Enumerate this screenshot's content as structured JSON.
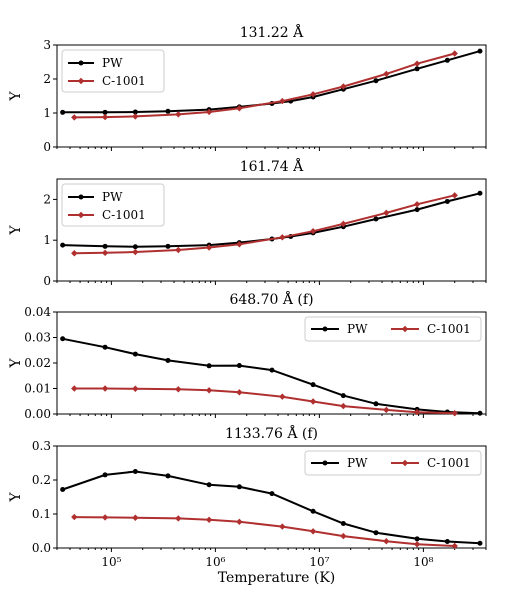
{
  "chart_data": [
    {
      "type": "line",
      "title": "131.22 Å",
      "xlabel": "",
      "ylabel": "Y",
      "xscale": "log",
      "xlim": [
        30000,
        400000000
      ],
      "ylim": [
        0,
        3
      ],
      "yticks": [
        "0",
        "1",
        "2",
        "3"
      ],
      "legend": "top-left",
      "series": [
        {
          "name": "PW",
          "color": "#000000",
          "marker": "circle",
          "x": [
            34000,
            87000,
            170000,
            350000,
            870000,
            1700000,
            3500000,
            5300000,
            8700000,
            17000000,
            35000000,
            87000000,
            170000000,
            350000000
          ],
          "y": [
            1.02,
            1.02,
            1.03,
            1.05,
            1.1,
            1.18,
            1.28,
            1.35,
            1.47,
            1.7,
            1.95,
            2.3,
            2.55,
            2.82
          ]
        },
        {
          "name": "C-1001",
          "color": "#b03030",
          "marker": "diamond",
          "x": [
            44000,
            87000,
            170000,
            440000,
            870000,
            1700000,
            4400000,
            8700000,
            17000000,
            44000000,
            87000000,
            200000000
          ],
          "y": [
            0.87,
            0.88,
            0.9,
            0.96,
            1.03,
            1.14,
            1.35,
            1.55,
            1.78,
            2.15,
            2.45,
            2.75
          ]
        }
      ]
    },
    {
      "type": "line",
      "title": "161.74 Å",
      "xlabel": "",
      "ylabel": "Y",
      "xscale": "log",
      "xlim": [
        30000,
        400000000
      ],
      "ylim": [
        0,
        2.5
      ],
      "yticks": [
        "0",
        "1",
        "2"
      ],
      "legend": "top-left",
      "series": [
        {
          "name": "PW",
          "color": "#000000",
          "marker": "circle",
          "x": [
            34000,
            87000,
            170000,
            350000,
            870000,
            1700000,
            3500000,
            5300000,
            8700000,
            17000000,
            35000000,
            87000000,
            170000000,
            350000000
          ],
          "y": [
            0.88,
            0.85,
            0.84,
            0.85,
            0.88,
            0.94,
            1.03,
            1.09,
            1.18,
            1.33,
            1.52,
            1.75,
            1.95,
            2.15
          ]
        },
        {
          "name": "C-1001",
          "color": "#b03030",
          "marker": "diamond",
          "x": [
            44000,
            87000,
            170000,
            440000,
            870000,
            1700000,
            4400000,
            8700000,
            17000000,
            44000000,
            87000000,
            200000000
          ],
          "y": [
            0.68,
            0.69,
            0.71,
            0.76,
            0.82,
            0.9,
            1.07,
            1.22,
            1.4,
            1.67,
            1.88,
            2.1
          ]
        }
      ]
    },
    {
      "type": "line",
      "title": "648.70 Å (f)",
      "xlabel": "",
      "ylabel": "Y",
      "xscale": "log",
      "xlim": [
        30000,
        400000000
      ],
      "ylim": [
        0,
        0.04
      ],
      "yticks": [
        "0.00",
        "0.01",
        "0.02",
        "0.03",
        "0.04"
      ],
      "legend": "top-right",
      "series": [
        {
          "name": "PW",
          "color": "#000000",
          "marker": "circle",
          "x": [
            34000,
            87000,
            170000,
            350000,
            870000,
            1700000,
            3500000,
            8700000,
            17000000,
            35000000,
            87000000,
            170000000,
            350000000
          ],
          "y": [
            0.0295,
            0.0262,
            0.0235,
            0.021,
            0.0189,
            0.019,
            0.0172,
            0.0115,
            0.0072,
            0.004,
            0.0018,
            0.0008,
            0.0003
          ]
        },
        {
          "name": "C-1001",
          "color": "#b03030",
          "marker": "diamond",
          "x": [
            44000,
            87000,
            170000,
            440000,
            870000,
            1700000,
            4400000,
            8700000,
            17000000,
            44000000,
            87000000,
            200000000
          ],
          "y": [
            0.01,
            0.01,
            0.0099,
            0.0097,
            0.0093,
            0.0085,
            0.0068,
            0.0049,
            0.0031,
            0.0016,
            0.0007,
            0.0003
          ]
        }
      ]
    },
    {
      "type": "line",
      "title": "1133.76 Å (f)",
      "xlabel": "Temperature (K)",
      "ylabel": "Y",
      "xscale": "log",
      "xlim": [
        30000,
        400000000
      ],
      "ylim": [
        0,
        0.3
      ],
      "yticks": [
        "0.0",
        "0.1",
        "0.2",
        "0.3"
      ],
      "xticks": [
        "10⁵",
        "10⁶",
        "10⁷",
        "10⁸"
      ],
      "legend": "top-right",
      "series": [
        {
          "name": "PW",
          "color": "#000000",
          "marker": "circle",
          "x": [
            34000,
            87000,
            170000,
            350000,
            870000,
            1700000,
            3500000,
            8700000,
            17000000,
            35000000,
            87000000,
            170000000,
            350000000
          ],
          "y": [
            0.172,
            0.215,
            0.225,
            0.212,
            0.186,
            0.18,
            0.16,
            0.108,
            0.072,
            0.045,
            0.027,
            0.019,
            0.014
          ]
        },
        {
          "name": "C-1001",
          "color": "#b03030",
          "marker": "diamond",
          "x": [
            44000,
            87000,
            170000,
            440000,
            870000,
            1700000,
            4400000,
            8700000,
            17000000,
            44000000,
            87000000,
            200000000
          ],
          "y": [
            0.091,
            0.09,
            0.089,
            0.087,
            0.083,
            0.077,
            0.063,
            0.049,
            0.035,
            0.02,
            0.011,
            0.006
          ]
        }
      ]
    }
  ]
}
